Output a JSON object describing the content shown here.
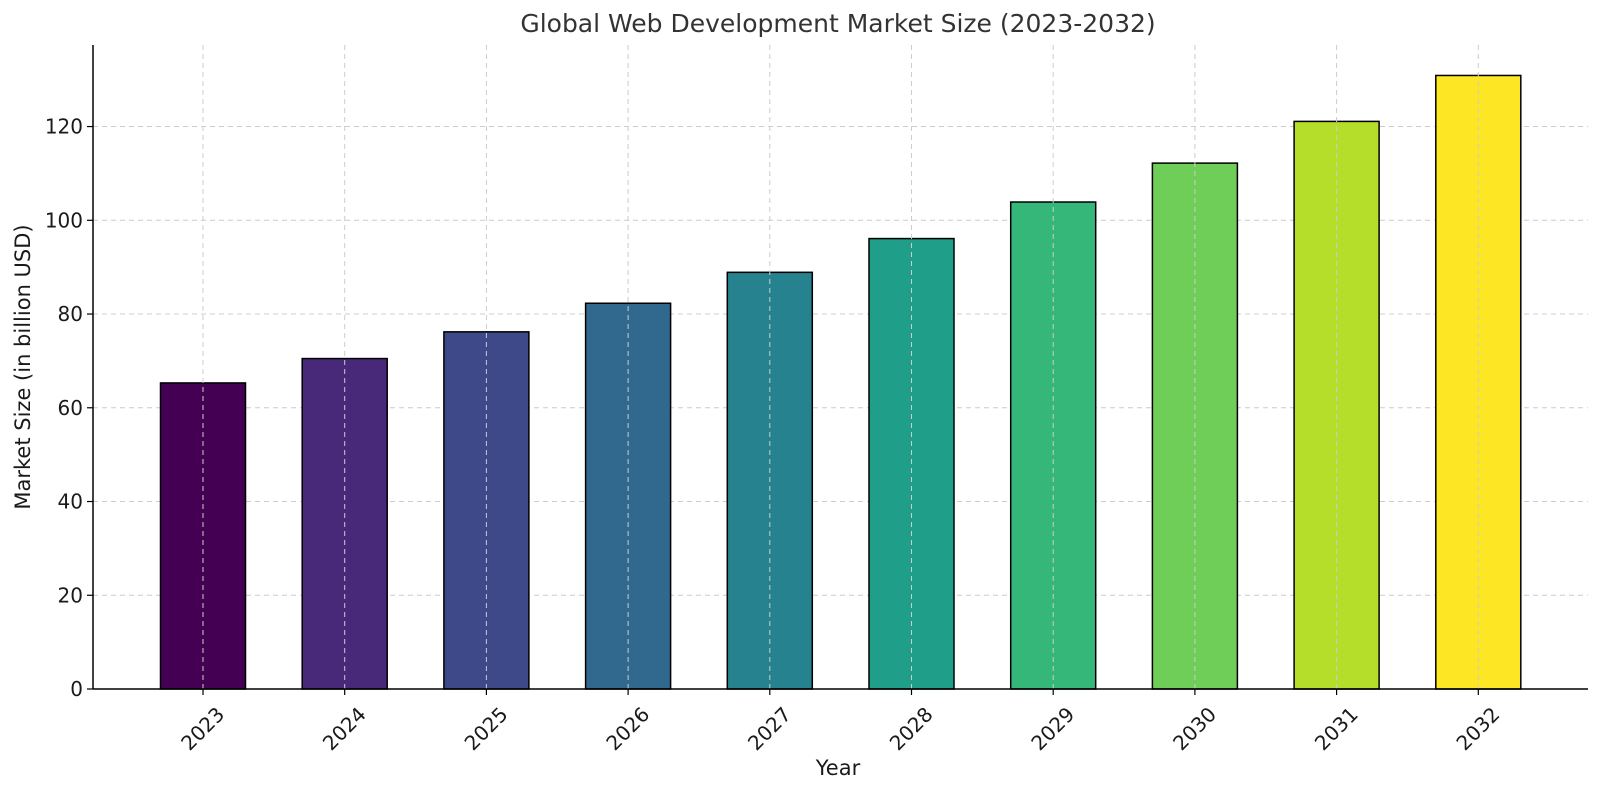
{
  "chart_data": {
    "type": "bar",
    "title": "Global Web Development Market Size (2023-2032)",
    "xlabel": "Year",
    "ylabel": "Market Size (in billion USD)",
    "categories": [
      "2023",
      "2024",
      "2025",
      "2026",
      "2027",
      "2028",
      "2029",
      "2030",
      "2031",
      "2032"
    ],
    "values": [
      65.3,
      70.5,
      76.2,
      82.3,
      88.9,
      96.1,
      103.9,
      112.2,
      121.1,
      130.9
    ],
    "colors": [
      "#440154",
      "#482878",
      "#3e4989",
      "#31688e",
      "#26828e",
      "#1f9e89",
      "#35b779",
      "#6ece58",
      "#b5de2b",
      "#fde725"
    ],
    "yticks": [
      0,
      20,
      40,
      60,
      80,
      100,
      120
    ],
    "ylim": [
      0,
      137.4
    ],
    "grid": true,
    "legend": "none"
  }
}
